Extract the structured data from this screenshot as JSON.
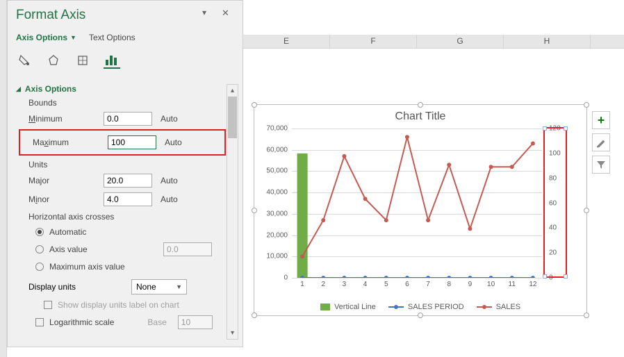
{
  "pane": {
    "title": "Format Axis",
    "tabs": {
      "axis_options": "Axis Options",
      "text_options": "Text Options"
    },
    "section": "Axis Options",
    "bounds_label": "Bounds",
    "min_label": "Minimum",
    "min_value": "0.0",
    "min_auto": "Auto",
    "max_label": "Maximum",
    "max_value": "100",
    "max_auto": "Auto",
    "units_label": "Units",
    "major_label": "Major",
    "major_value": "20.0",
    "major_auto": "Auto",
    "minor_label": "Minor",
    "minor_value": "4.0",
    "minor_auto": "Auto",
    "crosses_label": "Horizontal axis crosses",
    "crosses_auto": "Automatic",
    "crosses_axis_value": "Axis value",
    "crosses_axis_input": "0.0",
    "crosses_max": "Maximum axis value",
    "display_units_label": "Display units",
    "display_units_value": "None",
    "show_units_label": "Show display units label on chart",
    "log_label": "Logarithmic scale",
    "base_label": "Base",
    "base_value": "10"
  },
  "columns": {
    "E": "E",
    "F": "F",
    "G": "G",
    "H": "H"
  },
  "side_buttons": {
    "plus": "+",
    "brush": "✎",
    "filter": "▾"
  },
  "chart": {
    "title": "Chart Title",
    "type": "combo-line-bar",
    "x_categories": [
      "1",
      "2",
      "3",
      "4",
      "5",
      "6",
      "7",
      "8",
      "9",
      "10",
      "11",
      "12"
    ],
    "primary_y": {
      "min": 0,
      "max": 70000,
      "step": 10000,
      "labels": [
        "0",
        "10,000",
        "20,000",
        "30,000",
        "40,000",
        "50,000",
        "60,000",
        "70,000"
      ]
    },
    "secondary_y": {
      "min": 0,
      "max": 120,
      "step": 20,
      "labels": [
        "0",
        "20",
        "40",
        "60",
        "80",
        "100",
        "120"
      ]
    },
    "series_bar": {
      "name": "Vertical Line",
      "color": "#70AD47",
      "values": [
        100,
        0,
        0,
        0,
        0,
        0,
        0,
        0,
        0,
        0,
        0,
        0
      ]
    },
    "series_sales_period": {
      "name": "SALES PERIOD",
      "color": "#4472C4",
      "values": [
        1,
        2,
        3,
        4,
        5,
        6,
        7,
        8,
        9,
        10,
        11,
        12
      ]
    },
    "series_sales": {
      "name": "SALES",
      "color": "#C55A53",
      "values": [
        10000,
        27000,
        57000,
        37000,
        27000,
        66000,
        27000,
        53000,
        23000,
        52000,
        52000,
        63000
      ]
    },
    "grid_color": "#d9d9d9",
    "text_color": "#595959",
    "marker_radius": 3,
    "line_width": 2,
    "legend": {
      "vertical_line": "Vertical Line",
      "sales_period": "SALES PERIOD",
      "sales": "SALES"
    }
  }
}
